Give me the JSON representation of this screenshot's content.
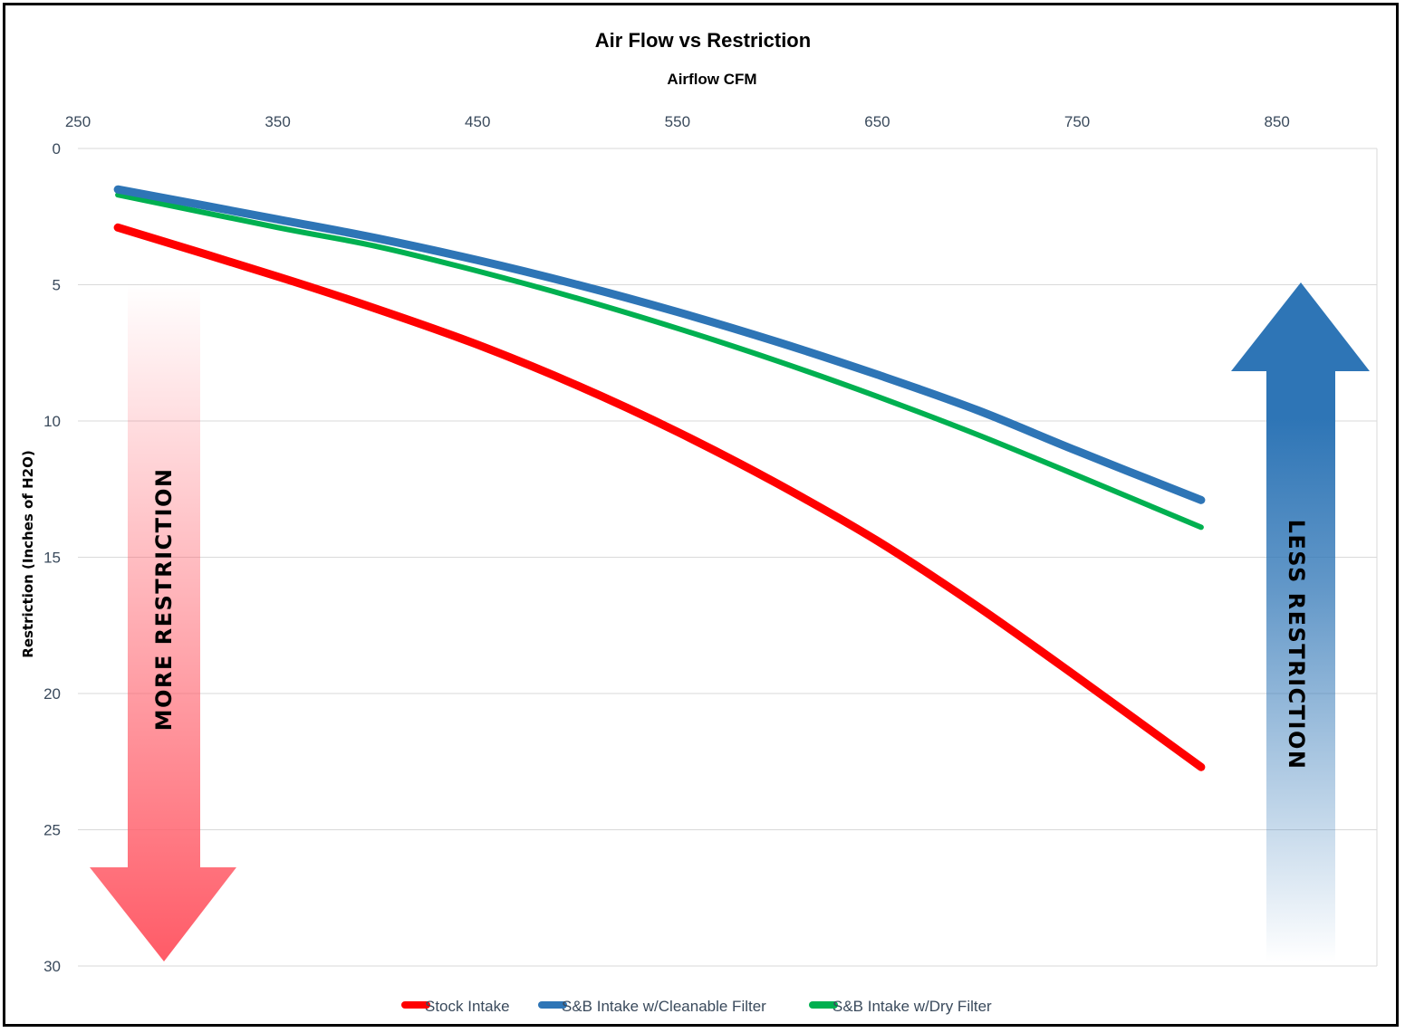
{
  "chart_data": {
    "type": "line",
    "title": "Air Flow vs Restriction",
    "xlabel": "Airflow CFM",
    "ylabel": "Restriction (Inches of H2O)",
    "xlim": [
      250,
      900
    ],
    "ylim": [
      0,
      30
    ],
    "y_inverted": true,
    "x_axis_position": "top",
    "x_ticks": [
      250,
      350,
      450,
      550,
      650,
      750,
      850
    ],
    "y_ticks": [
      0,
      5,
      10,
      15,
      20,
      25,
      30
    ],
    "grid": "horizontal",
    "legend_position": "bottom",
    "series": [
      {
        "name": "Stock Intake",
        "color": "#ff0000",
        "x": [
          270,
          350,
          400,
          450,
          500,
          550,
          600,
          650,
          700,
          750,
          812
        ],
        "y": [
          2.9,
          4.7,
          5.9,
          7.2,
          8.7,
          10.4,
          12.3,
          14.4,
          16.8,
          19.4,
          22.7
        ]
      },
      {
        "name": "S&B Intake w/Cleanable Filter",
        "color": "#2e75b6",
        "x": [
          270,
          350,
          400,
          450,
          500,
          550,
          600,
          650,
          700,
          750,
          812
        ],
        "y": [
          1.5,
          2.6,
          3.3,
          4.1,
          5.0,
          6.0,
          7.1,
          8.3,
          9.6,
          11.1,
          12.9
        ]
      },
      {
        "name": "S&B Intake w/Dry Filter",
        "color": "#00b050",
        "x": [
          270,
          350,
          400,
          450,
          500,
          550,
          600,
          650,
          700,
          750,
          812
        ],
        "y": [
          1.7,
          2.9,
          3.6,
          4.5,
          5.5,
          6.6,
          7.8,
          9.1,
          10.5,
          12.0,
          13.9
        ]
      }
    ],
    "annotations": {
      "more": {
        "text": "MORE RESTRICTION",
        "color": "#ff5b67"
      },
      "less": {
        "text": "LESS RESTRICTION",
        "color": "#2e75b6"
      }
    }
  }
}
